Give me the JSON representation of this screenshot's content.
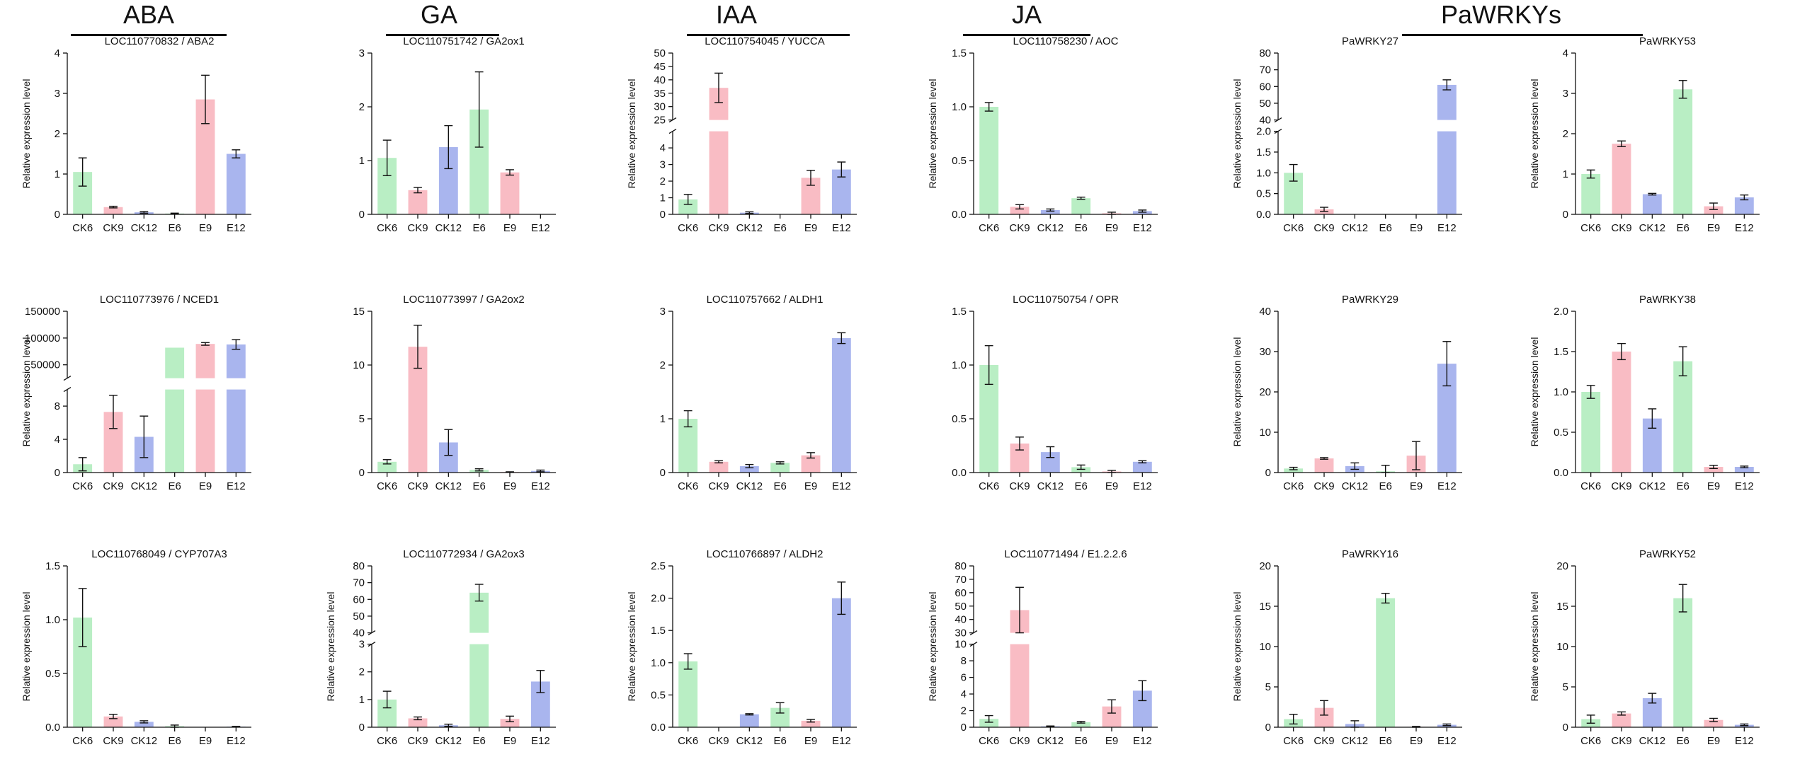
{
  "group_headers": [
    "ABA",
    "GA",
    "IAA",
    "JA",
    "PaWRKYs"
  ],
  "colors": {
    "green": "#b9eec4",
    "pink": "#f9bcc4",
    "blue": "#a9b5ee",
    "bar_color_cycle": [
      "green",
      "pink",
      "blue",
      "green",
      "pink",
      "blue"
    ]
  },
  "chart_data": [
    {
      "type": "bar",
      "title": "LOC110770832 / ABA2",
      "ylabel": "Relative expression level",
      "categories": [
        "CK6",
        "CK9",
        "CK12",
        "E6",
        "E9",
        "E12"
      ],
      "values": [
        1.05,
        0.18,
        0.05,
        0.02,
        2.85,
        1.5
      ],
      "errors": [
        0.35,
        0.02,
        0.02,
        0.01,
        0.6,
        0.1
      ],
      "ylim": [
        0,
        4
      ],
      "yticks": [
        0,
        1,
        2,
        3,
        4
      ]
    },
    {
      "type": "bar",
      "title": "LOC110751742 / GA2ox1",
      "ylabel": "",
      "categories": [
        "CK6",
        "CK9",
        "CK12",
        "E6",
        "E9",
        "E12"
      ],
      "values": [
        1.05,
        0.45,
        1.25,
        1.95,
        0.78,
        0.0
      ],
      "errors": [
        0.33,
        0.05,
        0.4,
        0.7,
        0.05,
        0.0
      ],
      "ylim": [
        0,
        3
      ],
      "yticks": [
        0,
        1,
        2,
        3
      ]
    },
    {
      "type": "bar",
      "title": "LOC110754045 / YUCCA",
      "ylabel": "Relative expression level",
      "categories": [
        "CK6",
        "CK9",
        "CK12",
        "E6",
        "E9",
        "E12"
      ],
      "values": [
        0.9,
        37,
        0.1,
        0.0,
        2.2,
        2.7
      ],
      "errors": [
        0.3,
        5.5,
        0.05,
        0.0,
        0.45,
        0.45
      ],
      "break": {
        "lower": [
          0,
          5
        ],
        "upper": [
          25,
          50
        ]
      },
      "yticks_lower": [
        0,
        1,
        2,
        3,
        4
      ],
      "yticks_upper": [
        25,
        30,
        35,
        40,
        45,
        50
      ]
    },
    {
      "type": "bar",
      "title": "LOC110758230 / AOC",
      "ylabel": "Relative expression level",
      "categories": [
        "CK6",
        "CK9",
        "CK12",
        "E6",
        "E9",
        "E12"
      ],
      "values": [
        1.0,
        0.07,
        0.04,
        0.15,
        0.01,
        0.03
      ],
      "errors": [
        0.04,
        0.02,
        0.01,
        0.01,
        0.01,
        0.01
      ],
      "ylim": [
        0,
        1.5
      ],
      "yticks": [
        "0.0",
        "0.5",
        "1.0",
        "1.5"
      ]
    },
    {
      "type": "bar",
      "title": "PaWRKY27",
      "ylabel": "Relative expression level",
      "categories": [
        "CK6",
        "CK9",
        "CK12",
        "E6",
        "E9",
        "E12"
      ],
      "values": [
        1.0,
        0.12,
        0.0,
        0.0,
        0.0,
        61
      ],
      "errors": [
        0.2,
        0.05,
        0.0,
        0.0,
        0.0,
        3
      ],
      "break": {
        "lower": [
          0,
          2
        ],
        "upper": [
          40,
          80
        ]
      },
      "yticks_lower": [
        "0.0",
        "0.5",
        "1.0",
        "1.5",
        "2.0"
      ],
      "yticks_upper": [
        40,
        50,
        60,
        70,
        80
      ]
    },
    {
      "type": "bar",
      "title": "PaWRKY53",
      "ylabel": "Relative expression level",
      "categories": [
        "CK6",
        "CK9",
        "CK12",
        "E6",
        "E9",
        "E12"
      ],
      "values": [
        1.0,
        1.75,
        0.5,
        3.1,
        0.2,
        0.42
      ],
      "errors": [
        0.1,
        0.07,
        0.02,
        0.22,
        0.08,
        0.06
      ],
      "ylim": [
        0,
        4
      ],
      "yticks": [
        0,
        1,
        2,
        3,
        4
      ]
    },
    {
      "type": "bar",
      "title": "LOC110773976 / NCED1",
      "ylabel": "Relative expression level",
      "categories": [
        "CK6",
        "CK9",
        "CK12",
        "E6",
        "E9",
        "E12"
      ],
      "values": [
        1.0,
        7.3,
        4.3,
        82000,
        89000,
        88000
      ],
      "errors": [
        0.8,
        2.0,
        2.5,
        0,
        2500,
        9000
      ],
      "break": {
        "lower": [
          0,
          10
        ],
        "upper": [
          25000,
          150000
        ]
      },
      "yticks_lower": [
        0,
        4,
        8
      ],
      "yticks_upper": [
        50000,
        100000,
        150000
      ]
    },
    {
      "type": "bar",
      "title": "LOC110773997 / GA2ox2",
      "ylabel": "",
      "categories": [
        "CK6",
        "CK9",
        "CK12",
        "E6",
        "E9",
        "E12"
      ],
      "values": [
        1.0,
        11.7,
        2.8,
        0.25,
        0.05,
        0.15
      ],
      "errors": [
        0.2,
        2.0,
        1.2,
        0.1,
        0.02,
        0.08
      ],
      "ylim": [
        0,
        15
      ],
      "yticks": [
        0,
        5,
        10,
        15
      ]
    },
    {
      "type": "bar",
      "title": "LOC110757662 / ALDH1",
      "ylabel": "",
      "categories": [
        "CK6",
        "CK9",
        "CK12",
        "E6",
        "E9",
        "E12"
      ],
      "values": [
        1.0,
        0.2,
        0.12,
        0.18,
        0.32,
        2.5
      ],
      "errors": [
        0.15,
        0.02,
        0.03,
        0.02,
        0.05,
        0.1
      ],
      "ylim": [
        0,
        3
      ],
      "yticks": [
        0,
        1,
        2,
        3
      ]
    },
    {
      "type": "bar",
      "title": "LOC110750754 / OPR",
      "ylabel": "",
      "categories": [
        "CK6",
        "CK9",
        "CK12",
        "E6",
        "E9",
        "E12"
      ],
      "values": [
        1.0,
        0.27,
        0.19,
        0.05,
        0.01,
        0.1
      ],
      "errors": [
        0.18,
        0.06,
        0.05,
        0.02,
        0.01,
        0.01
      ],
      "ylim": [
        0,
        1.5
      ],
      "yticks": [
        "0.0",
        "0.5",
        "1.0",
        "1.5"
      ]
    },
    {
      "type": "bar",
      "title": "PaWRKY29",
      "ylabel": "Relative expression level",
      "categories": [
        "CK6",
        "CK9",
        "CK12",
        "E6",
        "E9",
        "E12"
      ],
      "values": [
        1.0,
        3.5,
        1.6,
        0.3,
        4.2,
        27
      ],
      "errors": [
        0.3,
        0.2,
        0.8,
        1.5,
        3.5,
        5.5
      ],
      "ylim": [
        0,
        40
      ],
      "yticks": [
        0,
        10,
        20,
        30,
        40
      ]
    },
    {
      "type": "bar",
      "title": "PaWRKY38",
      "ylabel": "Relative expression level",
      "categories": [
        "CK6",
        "CK9",
        "CK12",
        "E6",
        "E9",
        "E12"
      ],
      "values": [
        1.0,
        1.5,
        0.67,
        1.38,
        0.07,
        0.07
      ],
      "errors": [
        0.08,
        0.1,
        0.12,
        0.18,
        0.02,
        0.01
      ],
      "ylim": [
        0,
        2
      ],
      "yticks": [
        "0.0",
        "0.5",
        "1.0",
        "1.5",
        "2.0"
      ]
    },
    {
      "type": "bar",
      "title": "LOC110768049 / CYP707A3",
      "ylabel": "Relative expression level",
      "categories": [
        "CK6",
        "CK9",
        "CK12",
        "E6",
        "E9",
        "E12"
      ],
      "values": [
        1.02,
        0.1,
        0.05,
        0.01,
        0.0,
        0.005
      ],
      "errors": [
        0.27,
        0.02,
        0.01,
        0.01,
        0.0,
        0.003
      ],
      "ylim": [
        0,
        1.5
      ],
      "yticks": [
        "0.0",
        "0.5",
        "1.0",
        "1.5"
      ]
    },
    {
      "type": "bar",
      "title": "LOC110772934 / GA2ox3",
      "ylabel": "Relative expression level",
      "categories": [
        "CK6",
        "CK9",
        "CK12",
        "E6",
        "E9",
        "E12"
      ],
      "values": [
        1.0,
        0.32,
        0.07,
        64,
        0.3,
        1.65
      ],
      "errors": [
        0.3,
        0.05,
        0.04,
        5,
        0.1,
        0.4
      ],
      "break": {
        "lower": [
          0,
          3
        ],
        "upper": [
          40,
          80
        ]
      },
      "yticks_lower": [
        0,
        1,
        2,
        3
      ],
      "yticks_upper": [
        40,
        50,
        60,
        70,
        80
      ]
    },
    {
      "type": "bar",
      "title": "LOC110766897 / ALDH2",
      "ylabel": "Relative expression level",
      "categories": [
        "CK6",
        "CK9",
        "CK12",
        "E6",
        "E9",
        "E12"
      ],
      "values": [
        1.02,
        0.0,
        0.2,
        0.3,
        0.1,
        2.0
      ],
      "errors": [
        0.12,
        0.0,
        0.01,
        0.08,
        0.02,
        0.25
      ],
      "ylim": [
        0,
        2.5
      ],
      "yticks": [
        "0.0",
        "0.5",
        "1.0",
        "1.5",
        "2.0",
        "2.5"
      ]
    },
    {
      "type": "bar",
      "title": "LOC110771494 / E1.2.2.6",
      "ylabel": "Relative expression level",
      "categories": [
        "CK6",
        "CK9",
        "CK12",
        "E6",
        "E9",
        "E12"
      ],
      "values": [
        1.0,
        47,
        0.1,
        0.6,
        2.5,
        4.4
      ],
      "errors": [
        0.4,
        17,
        0.05,
        0.1,
        0.8,
        1.2
      ],
      "break": {
        "lower": [
          0,
          10
        ],
        "upper": [
          30,
          80
        ]
      },
      "yticks_lower": [
        0,
        2,
        4,
        6,
        8,
        10
      ],
      "yticks_upper": [
        30,
        40,
        50,
        60,
        70,
        80
      ]
    },
    {
      "type": "bar",
      "title": "PaWRKY16",
      "ylabel": "Relative expression level",
      "categories": [
        "CK6",
        "CK9",
        "CK12",
        "E6",
        "E9",
        "E12"
      ],
      "values": [
        1.0,
        2.4,
        0.4,
        16.0,
        0.05,
        0.3
      ],
      "errors": [
        0.6,
        0.9,
        0.4,
        0.6,
        0.05,
        0.1
      ],
      "ylim": [
        0,
        20
      ],
      "yticks": [
        0,
        5,
        10,
        15,
        20
      ]
    },
    {
      "type": "bar",
      "title": "PaWRKY52",
      "ylabel": "Relative expression level",
      "categories": [
        "CK6",
        "CK9",
        "CK12",
        "E6",
        "E9",
        "E12"
      ],
      "values": [
        1.0,
        1.7,
        3.6,
        16.0,
        0.9,
        0.3
      ],
      "errors": [
        0.5,
        0.2,
        0.6,
        1.7,
        0.2,
        0.1
      ],
      "ylim": [
        0,
        20
      ],
      "yticks": [
        0,
        5,
        10,
        15,
        20
      ]
    }
  ]
}
